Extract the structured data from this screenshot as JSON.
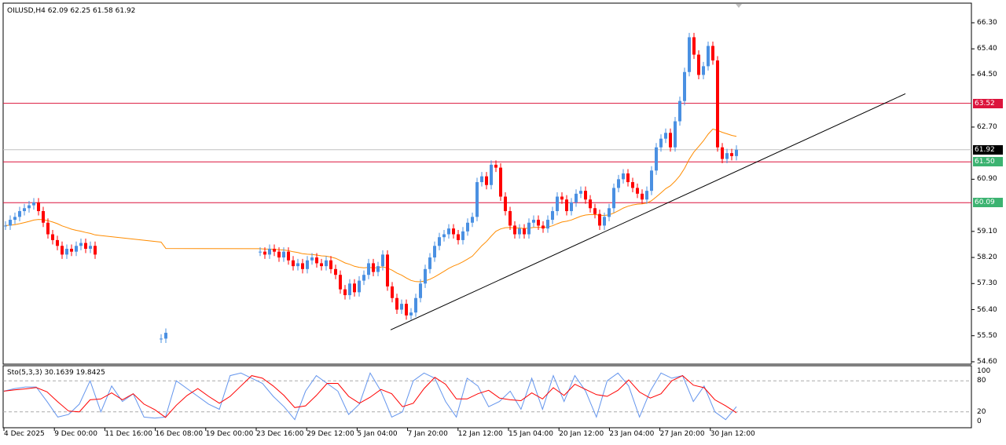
{
  "header": {
    "title": "OILUSD,H4  62.09 62.25 61.58 61.92"
  },
  "indicator": {
    "label": "Sto(5,3,3) 30.1639 19.8425",
    "levels": [
      "100",
      "80",
      "20",
      "0"
    ]
  },
  "price_axis": [
    "66.30",
    "65.40",
    "64.50",
    "62.70",
    "59.10",
    "58.20",
    "57.30",
    "56.40",
    "55.50",
    "54.60",
    "60.90"
  ],
  "price_tags": [
    {
      "label": "63.52",
      "value": 63.52,
      "color": "#dc143c",
      "line": "#dc143c"
    },
    {
      "label": "61.92",
      "value": 61.92,
      "color": "#000000",
      "line": "#c0c0c0"
    },
    {
      "label": "61.50",
      "value": 61.5,
      "color": "#3cb371",
      "line": "#dc143c"
    },
    {
      "label": "60.09",
      "value": 60.09,
      "color": "#3cb371",
      "line": "#dc143c"
    }
  ],
  "time_axis": [
    "4 Dec 2025",
    "9 Dec 00:00",
    "11 Dec 16:00",
    "16 Dec 08:00",
    "19 Dec 00:00",
    "23 Dec 16:00",
    "29 Dec 12:00",
    "5 Jan 04:00",
    "7 Jan 20:00",
    "12 Jan 12:00",
    "15 Jan 04:00",
    "20 Jan 12:00",
    "23 Jan 04:00",
    "27 Jan 20:00",
    "30 Jan 12:00"
  ],
  "chart_data": {
    "type": "candlestick",
    "symbol": "OILUSD",
    "timeframe": "H4",
    "ylim": [
      54.6,
      66.3
    ],
    "closes": [
      59.3,
      59.5,
      59.6,
      59.8,
      59.9,
      60.0,
      60.1,
      59.8,
      59.4,
      59.0,
      58.8,
      58.6,
      58.3,
      58.5,
      58.4,
      58.6,
      58.7,
      58.5,
      58.6,
      58.3,
      null,
      null,
      null,
      null,
      null,
      null,
      null,
      null,
      null,
      null,
      null,
      null,
      null,
      55.4,
      55.6,
      null,
      null,
      null,
      null,
      null,
      null,
      null,
      null,
      null,
      null,
      null,
      null,
      null,
      null,
      null,
      null,
      null,
      null,
      null,
      58.4,
      58.3,
      58.5,
      58.4,
      58.2,
      58.4,
      58.1,
      57.9,
      58.0,
      57.8,
      58.1,
      58.2,
      58.0,
      57.9,
      58.1,
      57.8,
      57.6,
      57.1,
      56.9,
      57.3,
      57.0,
      57.4,
      57.6,
      58.0,
      57.7,
      57.9,
      58.3,
      57.2,
      56.8,
      56.4,
      56.6,
      56.2,
      56.3,
      56.8,
      57.3,
      57.8,
      58.2,
      58.6,
      58.9,
      59.0,
      59.2,
      59.0,
      58.8,
      59.1,
      59.4,
      59.6,
      60.8,
      61.0,
      60.7,
      61.4,
      61.3,
      60.3,
      59.8,
      59.3,
      59.0,
      59.2,
      59.0,
      59.4,
      59.5,
      59.3,
      59.2,
      59.5,
      59.8,
      60.3,
      60.2,
      59.8,
      60.1,
      60.4,
      60.5,
      60.2,
      59.9,
      59.7,
      59.3,
      59.6,
      59.9,
      60.6,
      60.9,
      61.1,
      60.8,
      60.6,
      60.4,
      60.2,
      60.5,
      61.2,
      62.0,
      62.3,
      62.5,
      62.0,
      62.9,
      63.6,
      64.6,
      65.8,
      65.2,
      64.5,
      64.8,
      65.5,
      65.0,
      62.0,
      61.6,
      61.8,
      61.7,
      61.92
    ],
    "trendline": {
      "from": 55.7,
      "to": 63.85
    },
    "stochastic_k": [
      60,
      65,
      68,
      68,
      40,
      10,
      15,
      35,
      80,
      20,
      70,
      40,
      55,
      10,
      8,
      10,
      80,
      65,
      50,
      35,
      25,
      90,
      95,
      85,
      75,
      50,
      30,
      5,
      60,
      90,
      75,
      60,
      15,
      35,
      95,
      60,
      10,
      20,
      80,
      95,
      85,
      40,
      10,
      85,
      70,
      30,
      40,
      60,
      25,
      85,
      25,
      90,
      40,
      90,
      60,
      10,
      80,
      95,
      70,
      10,
      60,
      95,
      85,
      90,
      40,
      70,
      20,
      5,
      30
    ]
  }
}
